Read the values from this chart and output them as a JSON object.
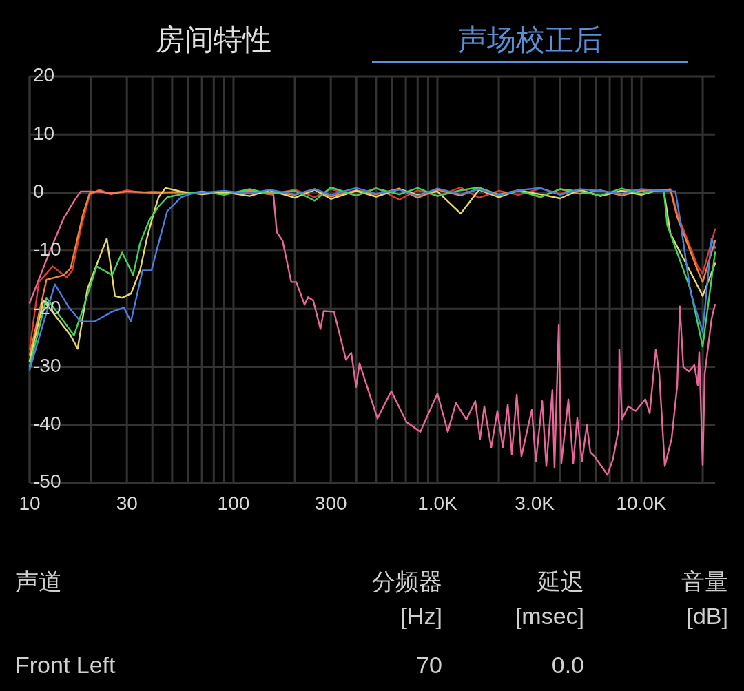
{
  "chart_data": {
    "type": "line",
    "log": "x",
    "grid": true,
    "annotations": [
      "房间特性",
      "声场校正后",
      "声道",
      "分频器",
      "[Hz]",
      "延迟",
      "[msec]",
      "音量",
      "[dB]",
      "Front Left",
      "70",
      "0.0"
    ],
    "xlim": [
      10,
      23000
    ],
    "ylim": [
      -50,
      20
    ],
    "xticks": [
      10,
      {
        "value": 20,
        "label": null
      },
      30,
      {
        "value": 40,
        "label": null
      },
      {
        "value": 50,
        "label": null
      },
      {
        "value": 60,
        "label": null
      },
      {
        "value": 70,
        "label": null
      },
      {
        "value": 80,
        "label": null
      },
      {
        "value": 90,
        "label": null
      },
      100,
      {
        "value": 200,
        "label": null
      },
      300,
      {
        "value": 400,
        "label": null
      },
      {
        "value": 500,
        "label": null
      },
      {
        "value": 600,
        "label": null
      },
      {
        "value": 700,
        "label": null
      },
      {
        "value": 800,
        "label": null
      },
      {
        "value": 900,
        "label": null
      },
      {
        "value": 1000,
        "label": "1.0K"
      },
      {
        "value": 2000,
        "label": null
      },
      {
        "value": 3000,
        "label": "3.0K"
      },
      {
        "value": 4000,
        "label": null
      },
      {
        "value": 5000,
        "label": null
      },
      {
        "value": 6000,
        "label": null
      },
      {
        "value": 7000,
        "label": null
      },
      {
        "value": 8000,
        "label": null
      },
      {
        "value": 9000,
        "label": null
      },
      {
        "value": 10000,
        "label": "10.0K"
      },
      {
        "value": 20000,
        "label": null
      }
    ],
    "yticks": [
      20,
      10,
      0,
      -10,
      -20,
      -30,
      -40,
      -50
    ],
    "series": [
      {
        "color": "#e8679a",
        "x": [
          10,
          12.6,
          14.7,
          16.5,
          17.8,
          20,
          25,
          30,
          40,
          60,
          80,
          100,
          130,
          157,
          163,
          174,
          192,
          203,
          223,
          232,
          246,
          267,
          277,
          311,
          356,
          378,
          399,
          415,
          508,
          594,
          705,
          824,
          1000,
          1124,
          1233,
          1387,
          1535,
          1618,
          1698,
          1836,
          1968,
          2094,
          2213,
          2317,
          2449,
          2582,
          2904,
          3041,
          3266,
          3420,
          3664,
          3750,
          3936,
          4055,
          4385,
          4634,
          4853,
          5117,
          5408,
          5623,
          5888,
          6823,
          7261,
          7745,
          7798,
          8035,
          8630,
          9397,
          10470,
          10990,
          11780,
          12250,
          13030,
          14090,
          15000,
          15450,
          16070,
          17100,
          18200,
          18920,
          19230,
          20000,
          20460,
          22130,
          22960
        ],
        "values": [
          -19,
          -10,
          -4.4,
          -1.5,
          0.2,
          0.2,
          0,
          0.2,
          0,
          0,
          0,
          0,
          0.2,
          -0.4,
          -6.8,
          -8.3,
          -15.4,
          -15.4,
          -19.3,
          -18,
          -18.6,
          -23.5,
          -20.4,
          -20.5,
          -28.8,
          -27.6,
          -33.5,
          -29.4,
          -38.9,
          -34.2,
          -39.5,
          -41.2,
          -34.6,
          -41.2,
          -36.2,
          -39.1,
          -35.9,
          -42.5,
          -36.8,
          -43.9,
          -37.6,
          -43.9,
          -36.5,
          -45.1,
          -34.8,
          -45.4,
          -37.4,
          -46.3,
          -35.9,
          -47.1,
          -34,
          -47.4,
          -22.8,
          -46.6,
          -35.6,
          -46.6,
          -38.8,
          -46.3,
          -40,
          -44.7,
          -45.4,
          -48.6,
          -45.9,
          -40.7,
          -27,
          -39.1,
          -36.8,
          -37.6,
          -35.6,
          -38,
          -27,
          -31.2,
          -47.1,
          -42.3,
          -33.2,
          -19.6,
          -30,
          -30.8,
          -29.7,
          -33.2,
          -27.5,
          -46.9,
          -31.2,
          -21.7,
          -19.3
        ]
      },
      {
        "color": "#e03a2a",
        "x": [
          10,
          11.1,
          13,
          15.2,
          16.2,
          17.8,
          19.7,
          22,
          25,
          30,
          35,
          40,
          50,
          60,
          70,
          90,
          120,
          150,
          200,
          250,
          300,
          400,
          500,
          650,
          800,
          1000,
          1300,
          1600,
          2000,
          2500,
          3200,
          4000,
          5000,
          6300,
          8000,
          10000,
          12000,
          13900,
          15000,
          18900,
          20000,
          23000
        ],
        "values": [
          -27,
          -15.4,
          -12.7,
          -14.6,
          -13.4,
          -6.3,
          -0.4,
          0.5,
          -0.3,
          0.4,
          0,
          0.2,
          0,
          0,
          0.1,
          0,
          0.2,
          -0.3,
          0.5,
          -0.8,
          0.6,
          -0.5,
          0.8,
          -1.2,
          0.4,
          -0.6,
          0.9,
          -0.9,
          0.3,
          -0.4,
          0.7,
          -0.2,
          0.5,
          -0.6,
          0.3,
          0.5,
          0.2,
          0.6,
          -3.6,
          -12.7,
          -13.9,
          -6.3
        ]
      },
      {
        "color": "#f0843a",
        "x": [
          10,
          12.1,
          14.7,
          15.9,
          18.2,
          19.7,
          22,
          25,
          30,
          40,
          50,
          70,
          90,
          120,
          150,
          200,
          250,
          300,
          400,
          500,
          650,
          800,
          1000,
          1300,
          1600,
          2000,
          2500,
          3200,
          4000,
          5000,
          6300,
          8000,
          10000,
          12000,
          13900,
          15000,
          18900,
          20000,
          23000
        ],
        "values": [
          -28,
          -15,
          -14.2,
          -13,
          -3.9,
          -0.1,
          0.3,
          -0.2,
          0.2,
          0,
          0.1,
          0,
          -0.2,
          0.3,
          0,
          -0.4,
          0.6,
          -0.7,
          0.4,
          -0.3,
          0.7,
          -0.9,
          0.5,
          -0.5,
          0.8,
          -0.3,
          0.4,
          -0.8,
          0.6,
          -0.2,
          0.4,
          -0.5,
          0.3,
          0.5,
          0.4,
          -4.2,
          -13.4,
          -15.4,
          -8.3
        ]
      },
      {
        "color": "#e8d86a",
        "x": [
          10,
          11.7,
          15.9,
          17.2,
          19.2,
          21.6,
          23.9,
          26.2,
          28.4,
          31.4,
          34.8,
          37.6,
          40.3,
          42.9,
          46.4,
          55,
          70,
          90,
          120,
          150,
          200,
          250,
          300,
          400,
          500,
          650,
          800,
          1000,
          1300,
          1600,
          2000,
          2500,
          3200,
          4000,
          5000,
          6300,
          8000,
          10000,
          12000,
          12900,
          13900,
          18100,
          20000,
          23000
        ],
        "values": [
          -29,
          -18.6,
          -24.6,
          -26.9,
          -16.6,
          -11.9,
          -7.9,
          -17.8,
          -18.1,
          -17.4,
          -13.4,
          -7.9,
          -3.9,
          -0.8,
          0.8,
          0.2,
          -0.3,
          0.1,
          -0.6,
          0.4,
          -0.9,
          0.5,
          -1.1,
          0.3,
          -0.7,
          0.6,
          -0.4,
          0.2,
          -3.6,
          0.5,
          -0.8,
          0.4,
          -0.3,
          -1,
          0.5,
          -0.6,
          0.3,
          -0.4,
          0.4,
          0.2,
          -7.1,
          -14.8,
          -17.8,
          -12.2
        ]
      },
      {
        "color": "#3ed65a",
        "x": [
          10,
          12.1,
          16.5,
          18.2,
          21.3,
          25.4,
          28.4,
          32.2,
          34.8,
          38.7,
          42.9,
          47.3,
          55.4,
          70,
          90,
          120,
          150,
          200,
          250,
          300,
          400,
          500,
          650,
          800,
          1000,
          1300,
          1600,
          2000,
          2500,
          3200,
          4000,
          5000,
          6300,
          8000,
          10000,
          12000,
          12900,
          13400,
          17400,
          20000,
          23000
        ],
        "values": [
          -30,
          -18.1,
          -24.6,
          -20.2,
          -12.7,
          -14.2,
          -10.3,
          -14.2,
          -8.7,
          -4.7,
          -2.4,
          -0.8,
          -0.3,
          0.2,
          -0.4,
          0.6,
          -0.2,
          0.3,
          -1.4,
          0.9,
          -0.5,
          0.7,
          -0.3,
          0.8,
          -0.6,
          0.4,
          0.9,
          -0.5,
          0.3,
          -0.7,
          0.6,
          0.2,
          -0.5,
          0.7,
          -0.2,
          0.4,
          0.3,
          -5.6,
          -16.6,
          -26.5,
          -10.3
        ]
      },
      {
        "color": "#4a7fe0",
        "x": [
          10,
          13.3,
          15.6,
          17.8,
          20.8,
          25.4,
          29,
          31.4,
          35.8,
          39.6,
          42.9,
          47.3,
          55.4,
          61.9,
          70,
          90,
          120,
          150,
          200,
          250,
          300,
          400,
          500,
          650,
          800,
          1000,
          1300,
          1600,
          2000,
          2500,
          3200,
          4000,
          5000,
          6300,
          8000,
          10000,
          12000,
          14700,
          15450,
          17400,
          20000,
          22100,
          23000
        ],
        "values": [
          -30.5,
          -15.8,
          -19.8,
          -22.2,
          -22.2,
          -20.5,
          -19.8,
          -22.2,
          -13.4,
          -13.4,
          -8.7,
          -3.2,
          -0.8,
          -0.2,
          0,
          0.3,
          -0.2,
          0.5,
          -0.3,
          0.6,
          -0.4,
          0.8,
          -0.2,
          0.5,
          -0.6,
          0.7,
          -0.3,
          0.6,
          -0.5,
          0.4,
          0.8,
          -0.4,
          0.6,
          0.3,
          -0.2,
          0.6,
          0.4,
          0.2,
          -4.4,
          -17,
          -24,
          -7.9,
          -9.5
        ]
      }
    ]
  }
}
